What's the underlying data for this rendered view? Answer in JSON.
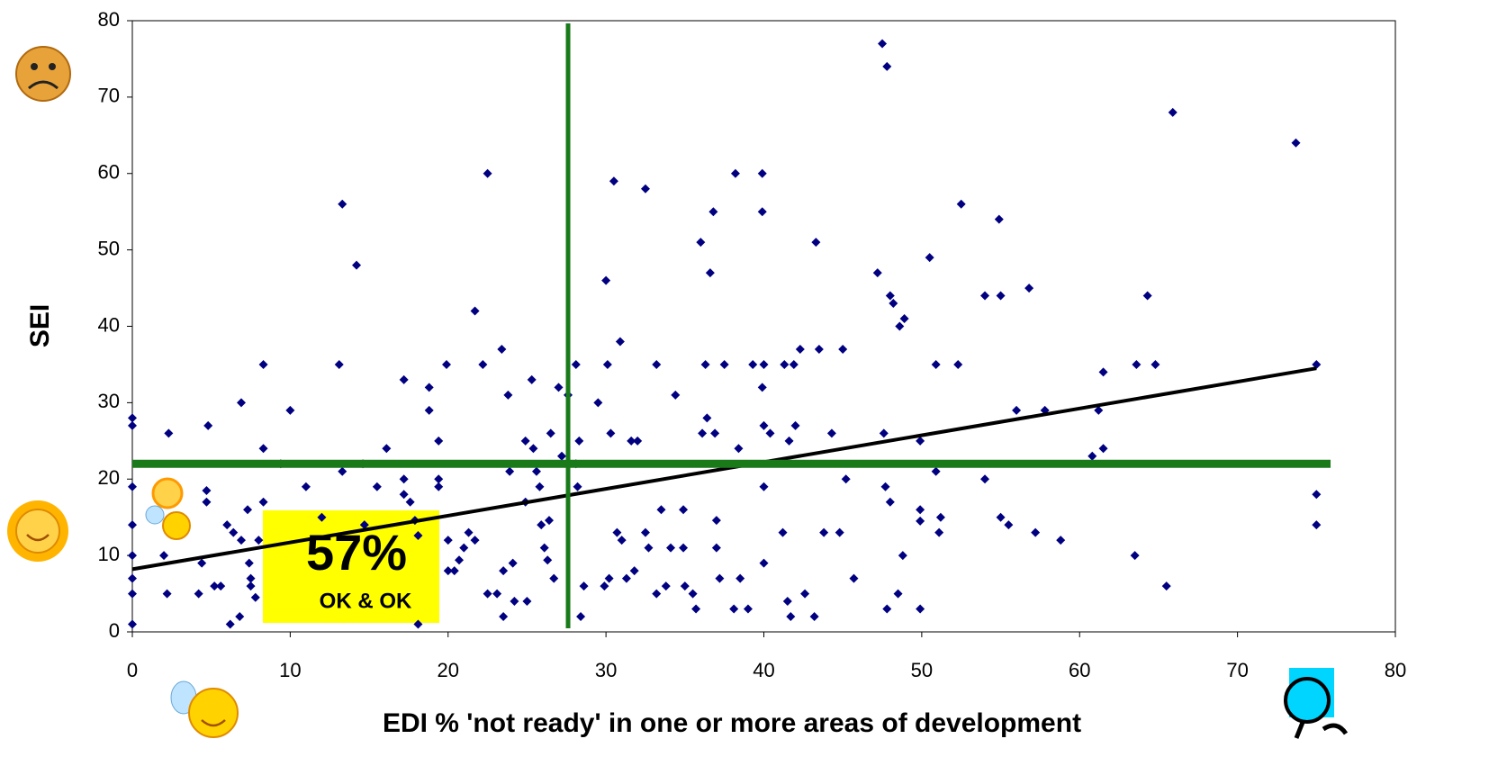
{
  "chart_data": {
    "type": "scatter",
    "x_label": "EDI % 'not ready' in one or more areas of development",
    "y_label": "SEI",
    "xlim": [
      0,
      80
    ],
    "ylim": [
      0,
      80
    ],
    "xticks": [
      0,
      10,
      20,
      30,
      40,
      50,
      60,
      70,
      80
    ],
    "yticks": [
      0,
      10,
      20,
      30,
      40,
      50,
      60,
      70,
      80
    ],
    "grid": false,
    "series": [
      {
        "color": "#000080",
        "x": [
          0,
          0,
          0,
          0,
          0,
          0,
          0,
          0,
          2.3,
          2,
          2.2,
          4.2,
          4.8,
          4.7,
          4.7,
          4.4,
          5.2,
          5.6,
          6.9,
          6,
          6.2,
          6.8,
          7.3,
          6.4,
          6.9,
          7.5,
          7.5,
          7.4,
          8,
          7.8,
          8.3,
          8.3,
          8.3,
          10,
          9.4,
          11,
          12,
          13.3,
          13.1,
          14.2,
          13.3,
          14.7,
          14.6,
          15.5,
          16.1,
          17.2,
          17.2,
          17.2,
          17.6,
          17.9,
          18.1,
          18.1,
          18.8,
          18.8,
          19.4,
          19.4,
          19.4,
          19.9,
          20,
          20,
          20.4,
          20.7,
          21,
          21.3,
          21.7,
          21.7,
          22.2,
          22.5,
          22.5,
          23.1,
          23.4,
          23.8,
          23.9,
          23.5,
          24.1,
          24.2,
          25,
          23.5,
          24.9,
          24.9,
          25.3,
          25.4,
          25.6,
          25.8,
          25.9,
          26.1,
          26.3,
          26.5,
          26.4,
          26.7,
          27,
          27.2,
          27.6,
          28.1,
          28.3,
          28.1,
          28.2,
          28.4,
          28.6,
          29.5,
          30,
          30.5,
          30.9,
          30.1,
          30.3,
          29.9,
          30.2,
          30.7,
          31,
          31.3,
          31.6,
          32,
          31.8,
          32.5,
          32.5,
          32.7,
          33.2,
          33.2,
          33.5,
          33.8,
          34.4,
          34.1,
          34.9,
          34.9,
          35,
          35.5,
          35.7,
          36,
          36.3,
          36.4,
          36.1,
          36.6,
          36.8,
          36.9,
          37,
          37,
          37.2,
          37.5,
          38.1,
          38.2,
          38.4,
          38.5,
          39,
          39.3,
          39.9,
          39.9,
          39.9,
          40,
          40,
          40,
          40,
          40.4,
          41.2,
          41.3,
          41.6,
          41.9,
          42,
          42.3,
          41.5,
          41.7,
          42.6,
          43.3,
          43.5,
          43.2,
          43.8,
          44.3,
          45,
          45.2,
          44.8,
          45.7,
          47.5,
          47.8,
          47.2,
          48,
          48.2,
          48.9,
          48.6,
          47.6,
          47.7,
          48,
          48.8,
          48.5,
          47.8,
          49.9,
          49.9,
          49.9,
          49.9,
          50.5,
          50.9,
          50.9,
          51.2,
          51.1,
          52.3,
          52.5,
          54,
          54,
          54.9,
          55,
          55,
          55.5,
          56,
          56.8,
          57.2,
          57.8,
          58.8,
          60.8,
          61.5,
          61.5,
          61.2,
          63.5,
          63.6,
          64.3,
          64.8,
          65.5,
          65.9,
          73.7,
          75,
          75,
          75
        ],
        "values": [
          28,
          27,
          19,
          14,
          10,
          7,
          5,
          1,
          26,
          10,
          5,
          5,
          27,
          18.5,
          17,
          9,
          6,
          6,
          30,
          14,
          1,
          2,
          16,
          13,
          12,
          7,
          6,
          9,
          12,
          4.5,
          35,
          24,
          17,
          29,
          22,
          19,
          15,
          56,
          35,
          48,
          21,
          14,
          22,
          19,
          24,
          33,
          20,
          18,
          17,
          14.6,
          12.6,
          1,
          32,
          29,
          25,
          20,
          19,
          35,
          12,
          8,
          8,
          9.4,
          11,
          13,
          42,
          12,
          35,
          60,
          5,
          5,
          37,
          31,
          21,
          8,
          9,
          4,
          4,
          2,
          25,
          17,
          33,
          24,
          21,
          19,
          14,
          11,
          9.4,
          26,
          14.6,
          7,
          32,
          23,
          31,
          35,
          25,
          22,
          19,
          2,
          6,
          30,
          46,
          59,
          38,
          35,
          26,
          6,
          7,
          13,
          12,
          7,
          25,
          25,
          8,
          58,
          13,
          11,
          35,
          5,
          16,
          6,
          31,
          11,
          16,
          11,
          6,
          5,
          3,
          51,
          35,
          28,
          26,
          47,
          55,
          26,
          14.6,
          11,
          7,
          35,
          3,
          60,
          24,
          7,
          3,
          35,
          60,
          55,
          32,
          27,
          19,
          9,
          35,
          26,
          13,
          35,
          25,
          35,
          27,
          37,
          4,
          2,
          5,
          51,
          37,
          2,
          13,
          26,
          37,
          20,
          13,
          7,
          77,
          74,
          47,
          44,
          43,
          41,
          40,
          26,
          19,
          17,
          10,
          5,
          3,
          25,
          16,
          14.5,
          3,
          49,
          35,
          21,
          15,
          13,
          35,
          56,
          44,
          20,
          54,
          44,
          15,
          14,
          29,
          45,
          13,
          29,
          12,
          23,
          34,
          24,
          29,
          10,
          35,
          44,
          35,
          6,
          68,
          64,
          35,
          18,
          14
        ]
      }
    ],
    "trendline": {
      "x": [
        0,
        75
      ],
      "y": [
        8.2,
        34.5
      ],
      "color": "#000000"
    },
    "reference_lines": {
      "x": 27.6,
      "y": 22,
      "color": "#1a7a1a"
    },
    "annotation": {
      "value": "57%",
      "label": "OK & OK",
      "color": "#ffff00"
    }
  }
}
